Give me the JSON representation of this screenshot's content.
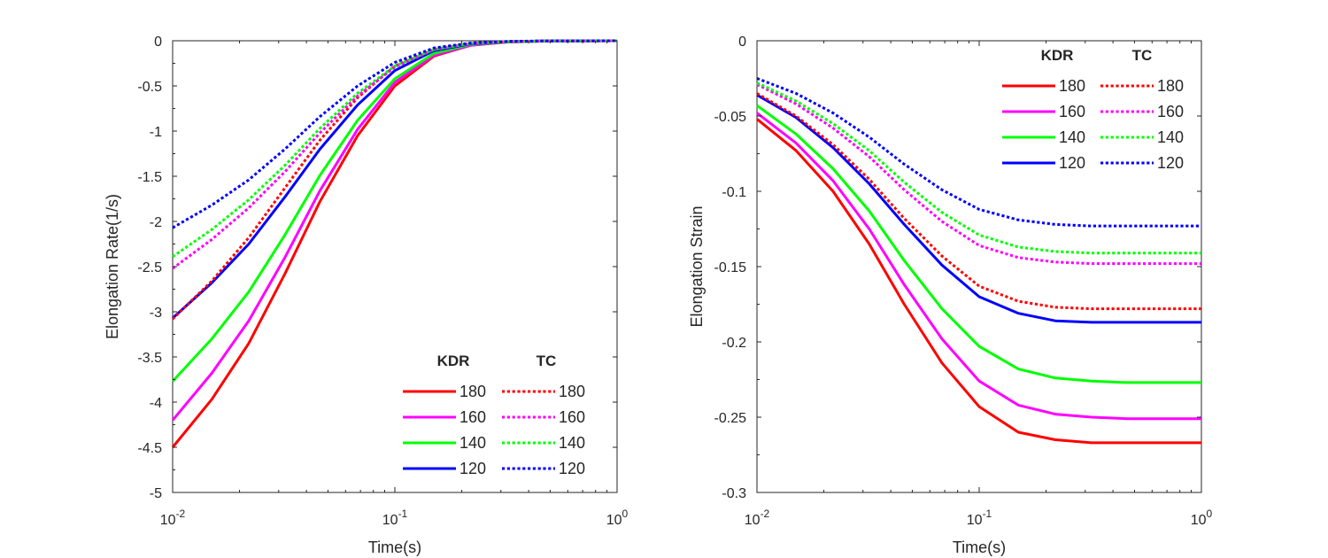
{
  "chart_data": [
    {
      "type": "line",
      "xscale": "log",
      "xlim": [
        0.01,
        1
      ],
      "ylim": [
        -5,
        0
      ],
      "xlabel": "Time(s)",
      "ylabel": "Elongation Rate(1/s)",
      "xticks": [
        {
          "value": 0.01,
          "base": "10",
          "exp": "-2"
        },
        {
          "value": 0.1,
          "base": "10",
          "exp": "-1"
        },
        {
          "value": 1,
          "base": "10",
          "exp": "0"
        }
      ],
      "yticks": [
        {
          "value": 0,
          "label": "0"
        },
        {
          "value": -0.5,
          "label": "-0.5"
        },
        {
          "value": -1,
          "label": "-1"
        },
        {
          "value": -1.5,
          "label": "-1.5"
        },
        {
          "value": -2,
          "label": "-2"
        },
        {
          "value": -2.5,
          "label": "-2.5"
        },
        {
          "value": -3,
          "label": "-3"
        },
        {
          "value": -3.5,
          "label": "-3.5"
        },
        {
          "value": -4,
          "label": "-4"
        },
        {
          "value": -4.5,
          "label": "-4.5"
        },
        {
          "value": -5,
          "label": "-5"
        }
      ],
      "legend": {
        "location": "bottom-right",
        "col_headers": [
          "KDR",
          "TC"
        ],
        "row_labels": [
          "180",
          "160",
          "140",
          "120"
        ]
      },
      "x": [
        0.01,
        0.015,
        0.022,
        0.032,
        0.046,
        0.068,
        0.1,
        0.15,
        0.22,
        0.32,
        0.46,
        0.68,
        1.0
      ],
      "series": [
        {
          "name": "KDR 180",
          "group": "KDR",
          "color": "#ff0000",
          "dash": false,
          "values": [
            -4.5,
            -3.97,
            -3.35,
            -2.58,
            -1.78,
            -1.05,
            -0.5,
            -0.17,
            -0.05,
            -0.015,
            -0.005,
            -0.002,
            0
          ]
        },
        {
          "name": "KDR 160",
          "group": "KDR",
          "color": "#ff00ff",
          "dash": false,
          "values": [
            -4.2,
            -3.68,
            -3.1,
            -2.4,
            -1.66,
            -0.98,
            -0.46,
            -0.16,
            -0.05,
            -0.014,
            -0.005,
            -0.002,
            0
          ]
        },
        {
          "name": "KDR 140",
          "group": "KDR",
          "color": "#00ff00",
          "dash": false,
          "values": [
            -3.77,
            -3.3,
            -2.78,
            -2.15,
            -1.49,
            -0.88,
            -0.42,
            -0.14,
            -0.04,
            -0.012,
            -0.004,
            -0.001,
            0
          ]
        },
        {
          "name": "KDR 120",
          "group": "KDR",
          "color": "#0000ff",
          "dash": false,
          "values": [
            -3.07,
            -2.68,
            -2.25,
            -1.73,
            -1.2,
            -0.71,
            -0.33,
            -0.11,
            -0.035,
            -0.01,
            -0.003,
            -0.001,
            0
          ]
        },
        {
          "name": "TC 180",
          "group": "TC",
          "color": "#ff0000",
          "dash": true,
          "values": [
            -3.08,
            -2.66,
            -2.18,
            -1.63,
            -1.1,
            -0.63,
            -0.28,
            -0.09,
            -0.03,
            -0.008,
            -0.003,
            -0.001,
            0
          ]
        },
        {
          "name": "TC 160",
          "group": "TC",
          "color": "#ff00ff",
          "dash": true,
          "values": [
            -2.52,
            -2.2,
            -1.85,
            -1.45,
            -1.02,
            -0.61,
            -0.29,
            -0.1,
            -0.03,
            -0.009,
            -0.003,
            -0.001,
            0
          ]
        },
        {
          "name": "TC 140",
          "group": "TC",
          "color": "#00ff00",
          "dash": true,
          "values": [
            -2.39,
            -2.09,
            -1.76,
            -1.38,
            -0.97,
            -0.58,
            -0.28,
            -0.095,
            -0.03,
            -0.009,
            -0.003,
            -0.001,
            0
          ]
        },
        {
          "name": "TC 120",
          "group": "TC",
          "color": "#0000ff",
          "dash": true,
          "values": [
            -2.07,
            -1.82,
            -1.54,
            -1.2,
            -0.84,
            -0.5,
            -0.24,
            -0.08,
            -0.025,
            -0.007,
            -0.002,
            -0.001,
            0
          ]
        }
      ]
    },
    {
      "type": "line",
      "xscale": "log",
      "xlim": [
        0.01,
        1
      ],
      "ylim": [
        -0.3,
        0
      ],
      "xlabel": "Time(s)",
      "ylabel": "Elongation Strain",
      "xticks": [
        {
          "value": 0.01,
          "base": "10",
          "exp": "-2"
        },
        {
          "value": 0.1,
          "base": "10",
          "exp": "-1"
        },
        {
          "value": 1,
          "base": "10",
          "exp": "0"
        }
      ],
      "yticks": [
        {
          "value": 0,
          "label": "0"
        },
        {
          "value": -0.05,
          "label": "-0.05"
        },
        {
          "value": -0.1,
          "label": "-0.1"
        },
        {
          "value": -0.15,
          "label": "-0.15"
        },
        {
          "value": -0.2,
          "label": "-0.2"
        },
        {
          "value": -0.25,
          "label": "-0.25"
        },
        {
          "value": -0.3,
          "label": "-0.3"
        }
      ],
      "legend": {
        "location": "top-right",
        "col_headers": [
          "KDR",
          "TC"
        ],
        "row_labels": [
          "180",
          "160",
          "140",
          "120"
        ]
      },
      "x": [
        0.01,
        0.015,
        0.022,
        0.032,
        0.046,
        0.068,
        0.1,
        0.15,
        0.22,
        0.32,
        0.46,
        0.68,
        1.0
      ],
      "series": [
        {
          "name": "KDR 180",
          "group": "KDR",
          "color": "#ff0000",
          "dash": false,
          "values": [
            -0.052,
            -0.073,
            -0.1,
            -0.135,
            -0.175,
            -0.214,
            -0.243,
            -0.26,
            -0.265,
            -0.267,
            -0.267,
            -0.267,
            -0.267
          ]
        },
        {
          "name": "KDR 160",
          "group": "KDR",
          "color": "#ff00ff",
          "dash": false,
          "values": [
            -0.048,
            -0.068,
            -0.093,
            -0.125,
            -0.162,
            -0.198,
            -0.226,
            -0.242,
            -0.248,
            -0.25,
            -0.251,
            -0.251,
            -0.251
          ]
        },
        {
          "name": "KDR 140",
          "group": "KDR",
          "color": "#00ff00",
          "dash": false,
          "values": [
            -0.043,
            -0.062,
            -0.085,
            -0.113,
            -0.146,
            -0.178,
            -0.203,
            -0.218,
            -0.224,
            -0.226,
            -0.227,
            -0.227,
            -0.227
          ]
        },
        {
          "name": "KDR 120",
          "group": "KDR",
          "color": "#0000ff",
          "dash": false,
          "values": [
            -0.036,
            -0.051,
            -0.071,
            -0.095,
            -0.122,
            -0.149,
            -0.17,
            -0.181,
            -0.186,
            -0.187,
            -0.187,
            -0.187,
            -0.187
          ]
        },
        {
          "name": "TC 180",
          "group": "TC",
          "color": "#ff0000",
          "dash": true,
          "values": [
            -0.035,
            -0.05,
            -0.069,
            -0.092,
            -0.118,
            -0.143,
            -0.163,
            -0.173,
            -0.177,
            -0.178,
            -0.178,
            -0.178,
            -0.178
          ]
        },
        {
          "name": "TC 160",
          "group": "TC",
          "color": "#ff00ff",
          "dash": true,
          "values": [
            -0.029,
            -0.042,
            -0.058,
            -0.077,
            -0.099,
            -0.12,
            -0.136,
            -0.144,
            -0.147,
            -0.148,
            -0.148,
            -0.148,
            -0.148
          ]
        },
        {
          "name": "TC 140",
          "group": "TC",
          "color": "#00ff00",
          "dash": true,
          "values": [
            -0.028,
            -0.04,
            -0.055,
            -0.073,
            -0.094,
            -0.114,
            -0.129,
            -0.137,
            -0.14,
            -0.141,
            -0.141,
            -0.141,
            -0.141
          ]
        },
        {
          "name": "TC 120",
          "group": "TC",
          "color": "#0000ff",
          "dash": true,
          "values": [
            -0.025,
            -0.035,
            -0.048,
            -0.064,
            -0.082,
            -0.099,
            -0.112,
            -0.119,
            -0.122,
            -0.123,
            -0.123,
            -0.123,
            -0.123
          ]
        }
      ]
    }
  ]
}
